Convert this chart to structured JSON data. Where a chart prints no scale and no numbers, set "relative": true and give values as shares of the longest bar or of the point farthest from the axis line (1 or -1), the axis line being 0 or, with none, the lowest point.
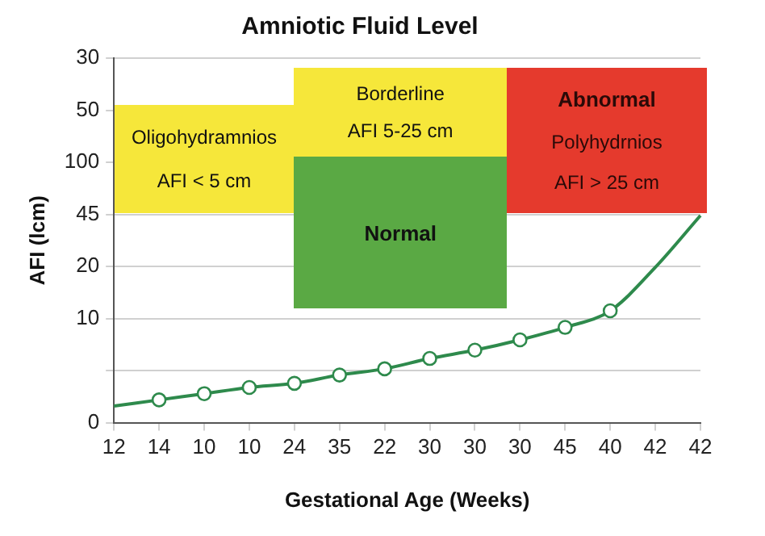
{
  "chart_data": {
    "type": "line",
    "title": "Amniotic Fluid Level",
    "xlabel": "Gestational Age (Weeks)",
    "ylabel": "AFI (lcm)",
    "annotations": [
      "Oligohydramnios",
      "AFI < 5 cm",
      "Borderline",
      "AFI 5-25 cm",
      "Normal",
      "Abnormal",
      "Polyhydrnios",
      "AFI > 25 cm",
      "0",
      "10",
      "20",
      "45",
      "100",
      "50",
      "30"
    ],
    "categories": [
      "12",
      "14",
      "10",
      "10",
      "24",
      "35",
      "22",
      "30",
      "30",
      "30",
      "45",
      "40",
      "42",
      "42"
    ],
    "relative": true,
    "grid": "y",
    "legend": false,
    "series": [
      {
        "type": "line",
        "color": "#2e8a4c",
        "marker": "none",
        "values": [
          0.08,
          0.11,
          0.14,
          0.17,
          0.19,
          0.23,
          0.26,
          0.31,
          0.35,
          0.4,
          0.46,
          0.54,
          0.75,
          1
        ]
      },
      {
        "type": "scatter",
        "color": "#2e8a4c",
        "marker": "circle",
        "values": [
          null,
          0.11,
          0.14,
          0.17,
          0.19,
          0.23,
          0.26,
          0.31,
          0.35,
          0.4,
          0.46,
          0.54,
          null,
          null
        ]
      }
    ]
  }
}
